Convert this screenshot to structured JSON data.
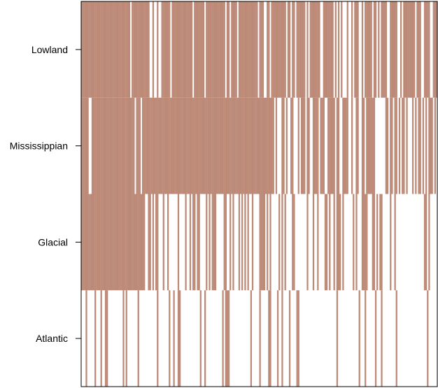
{
  "chart_data": {
    "type": "heatmap",
    "title": "",
    "xlabel": "",
    "ylabel": "",
    "rows": [
      "Lowland",
      "Mississippian",
      "Glacial",
      "Atlantic"
    ],
    "column_count": 240,
    "fill_color": "#bd8a78",
    "empty_color": "#ffffff",
    "frame_color": "#000000",
    "row_fill_fraction": {
      "Lowland": 0.9,
      "Mississippian": 0.64,
      "Glacial": 0.45,
      "Atlantic": 0.18
    },
    "dense_block_fraction": {
      "Lowland": 0.12,
      "Mississippian": 0.54,
      "Glacial": 0.17,
      "Atlantic": 0.0
    },
    "grid": false,
    "legend": "none"
  }
}
